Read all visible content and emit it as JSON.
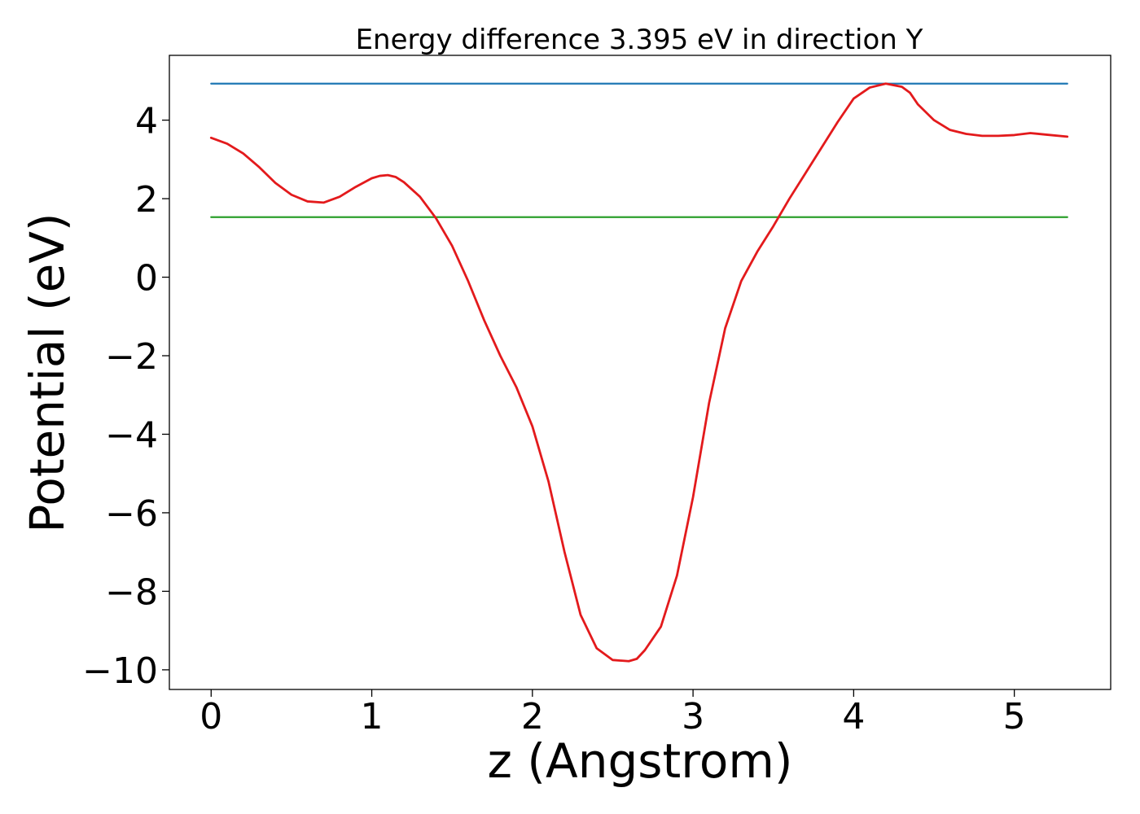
{
  "chart_data": {
    "type": "line",
    "title": "Energy difference 3.395 eV in direction Y",
    "xlabel": "z (Angstrom)",
    "ylabel": "Potential (eV)",
    "xlim": [
      -0.26,
      5.6
    ],
    "ylim": [
      -10.5,
      5.65
    ],
    "xticks": [
      0,
      1,
      2,
      3,
      4,
      5
    ],
    "xtick_labels": [
      "0",
      "1",
      "2",
      "3",
      "4",
      "5"
    ],
    "yticks": [
      4,
      2,
      0,
      -2,
      -4,
      -6,
      -8,
      -10
    ],
    "ytick_labels": [
      "4",
      "2",
      "0",
      "−2",
      "−4",
      "−6",
      "−8",
      "−10"
    ],
    "grid": false,
    "series": [
      {
        "color": "#1f77b4",
        "x": [
          0,
          5.33
        ],
        "y": [
          4.93,
          4.93
        ]
      },
      {
        "color": "#2ca02c",
        "x": [
          0,
          5.33
        ],
        "y": [
          1.53,
          1.53
        ]
      },
      {
        "color": "#e31a1c",
        "x": [
          0,
          0.1,
          0.2,
          0.3,
          0.4,
          0.5,
          0.6,
          0.7,
          0.8,
          0.9,
          1.0,
          1.05,
          1.1,
          1.15,
          1.2,
          1.3,
          1.4,
          1.5,
          1.6,
          1.7,
          1.8,
          1.9,
          2.0,
          2.1,
          2.2,
          2.3,
          2.4,
          2.5,
          2.6,
          2.65,
          2.7,
          2.8,
          2.9,
          3.0,
          3.1,
          3.2,
          3.3,
          3.4,
          3.5,
          3.6,
          3.7,
          3.8,
          3.9,
          4.0,
          4.1,
          4.2,
          4.3,
          4.35,
          4.4,
          4.5,
          4.6,
          4.7,
          4.8,
          4.9,
          5.0,
          5.1,
          5.2,
          5.33
        ],
        "y": [
          3.55,
          3.4,
          3.15,
          2.8,
          2.4,
          2.1,
          1.93,
          1.9,
          2.05,
          2.3,
          2.52,
          2.58,
          2.6,
          2.55,
          2.42,
          2.05,
          1.5,
          0.8,
          -0.1,
          -1.1,
          -2.0,
          -2.8,
          -3.8,
          -5.2,
          -7.0,
          -8.6,
          -9.45,
          -9.75,
          -9.78,
          -9.72,
          -9.5,
          -8.9,
          -7.6,
          -5.6,
          -3.2,
          -1.3,
          -0.1,
          0.65,
          1.3,
          2.0,
          2.65,
          3.3,
          3.95,
          4.55,
          4.83,
          4.93,
          4.85,
          4.7,
          4.4,
          4.0,
          3.75,
          3.65,
          3.6,
          3.6,
          3.62,
          3.67,
          3.63,
          3.58
        ]
      }
    ]
  }
}
